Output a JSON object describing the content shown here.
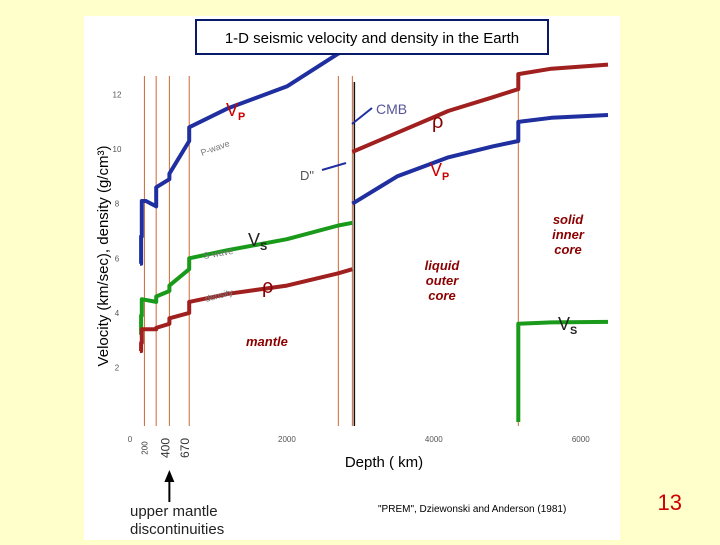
{
  "slide": {
    "number": "13"
  },
  "chart_data": {
    "type": "line",
    "title": "1-D seismic velocity and density in the Earth",
    "xlabel": "Depth ( km)",
    "ylabel": "Velocity (km/sec), density (g/cm³)",
    "xlim": [
      0,
      6371
    ],
    "ylim": [
      0,
      14
    ],
    "x_ticks": [
      {
        "value": 0,
        "label": "0"
      },
      {
        "value": 2000,
        "label": "2000"
      },
      {
        "value": 4000,
        "label": "4000"
      },
      {
        "value": 6000,
        "label": "6000"
      }
    ],
    "x_special_ticks": [
      {
        "value": 200,
        "label": "200"
      },
      {
        "value": 400,
        "label": "400"
      },
      {
        "value": 670,
        "label": "670"
      }
    ],
    "y_ticks": [
      {
        "value": 0,
        "label": ""
      },
      {
        "value": 2,
        "label": "2"
      },
      {
        "value": 4,
        "label": "4"
      },
      {
        "value": 6,
        "label": "6"
      },
      {
        "value": 8,
        "label": "8"
      },
      {
        "value": 10,
        "label": "10"
      },
      {
        "value": 12,
        "label": "12"
      }
    ],
    "grid": false,
    "vertical_lines": [
      {
        "x": 60,
        "color": "#cc6633"
      },
      {
        "x": 220,
        "color": "#cc6633"
      },
      {
        "x": 400,
        "color": "#cc6633"
      },
      {
        "x": 670,
        "color": "#cc6633"
      },
      {
        "x": 2700,
        "color": "#cc6633"
      },
      {
        "x": 2891,
        "color": "#cc6633"
      },
      {
        "x": 5150,
        "color": "#cc6633"
      }
    ],
    "series": [
      {
        "name": "Vp",
        "color": "#1f2fa0",
        "segments": [
          [
            [
              0,
              5.8
            ],
            [
              15,
              5.8
            ],
            [
              15,
              6.8
            ],
            [
              24,
              6.8
            ],
            [
              24,
              8.1
            ],
            [
              80,
              8.1
            ],
            [
              220,
              7.9
            ],
            [
              220,
              8.6
            ],
            [
              400,
              8.9
            ],
            [
              400,
              9.1
            ],
            [
              670,
              10.3
            ],
            [
              670,
              10.8
            ],
            [
              1200,
              11.5
            ],
            [
              2000,
              12.3
            ],
            [
              2700,
              13.5
            ],
            [
              2891,
              13.7
            ]
          ],
          [
            [
              2891,
              8.0
            ],
            [
              3500,
              9.0
            ],
            [
              4200,
              9.7
            ],
            [
              4800,
              10.1
            ],
            [
              5150,
              10.3
            ],
            [
              5150,
              11.0
            ],
            [
              5600,
              11.15
            ],
            [
              6371,
              11.25
            ]
          ]
        ]
      },
      {
        "name": "Vs",
        "color": "#1a9a1a",
        "segments": [
          [
            [
              0,
              3.2
            ],
            [
              15,
              3.2
            ],
            [
              15,
              3.9
            ],
            [
              24,
              3.9
            ],
            [
              24,
              4.5
            ],
            [
              220,
              4.4
            ],
            [
              220,
              4.6
            ],
            [
              400,
              4.8
            ],
            [
              400,
              5.0
            ],
            [
              670,
              5.6
            ],
            [
              670,
              6.0
            ],
            [
              1200,
              6.3
            ],
            [
              2000,
              6.7
            ],
            [
              2700,
              7.2
            ],
            [
              2891,
              7.3
            ]
          ],
          [
            [
              5150,
              0.0
            ],
            [
              5150,
              3.6
            ],
            [
              5600,
              3.65
            ],
            [
              6371,
              3.67
            ]
          ]
        ]
      },
      {
        "name": "ρ",
        "color": "#a02020",
        "segments": [
          [
            [
              0,
              2.6
            ],
            [
              15,
              2.6
            ],
            [
              15,
              2.9
            ],
            [
              24,
              2.9
            ],
            [
              24,
              3.4
            ],
            [
              220,
              3.4
            ],
            [
              220,
              3.45
            ],
            [
              400,
              3.6
            ],
            [
              400,
              3.8
            ],
            [
              670,
              4.0
            ],
            [
              670,
              4.4
            ],
            [
              1200,
              4.7
            ],
            [
              2000,
              5.0
            ],
            [
              2700,
              5.45
            ],
            [
              2891,
              5.6
            ]
          ],
          [
            [
              2891,
              9.9
            ],
            [
              3500,
              10.6
            ],
            [
              4200,
              11.4
            ],
            [
              4800,
              11.9
            ],
            [
              5150,
              12.2
            ],
            [
              5150,
              12.75
            ],
            [
              5600,
              12.95
            ],
            [
              6371,
              13.1
            ]
          ]
        ]
      }
    ],
    "annotations": [
      {
        "text": "VP",
        "color": "#cc0000"
      },
      {
        "text": "P-wave",
        "color": "#777777"
      },
      {
        "text": "CMB",
        "color": "#555599"
      },
      {
        "text": "ρ",
        "color": "#880000"
      },
      {
        "text": "D\"",
        "color": "#555555"
      },
      {
        "text": "VP",
        "color": "#cc0000"
      },
      {
        "text": "VS",
        "color": "#222222"
      },
      {
        "text": "S-wave",
        "color": "#777777"
      },
      {
        "text": "ρ",
        "color": "#880000"
      },
      {
        "text": "density",
        "color": "#777777"
      },
      {
        "text": "mantle",
        "color": "#8b0000"
      },
      {
        "text": "liquid outer core",
        "color": "#8b0000"
      },
      {
        "text": "solid inner core",
        "color": "#8b0000"
      },
      {
        "text": "VS",
        "color": "#222222"
      }
    ],
    "bottom_note": "upper mantle discontinuities",
    "citation": "\"PREM\",  Dziewonski and Anderson (1981)"
  }
}
